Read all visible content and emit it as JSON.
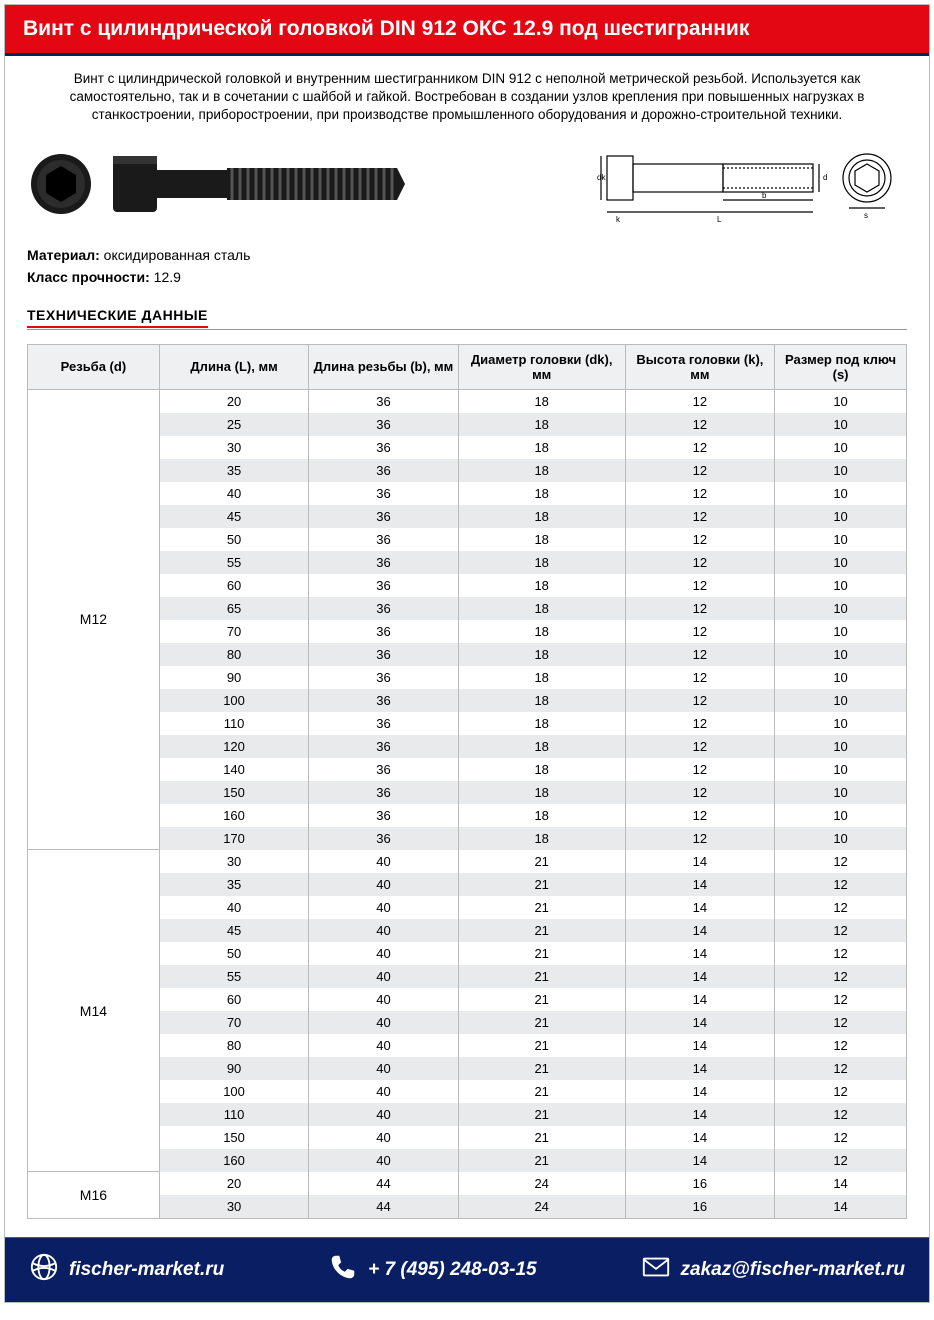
{
  "title": "Винт с цилиндрической головкой DIN 912 ОКС 12.9 под шестигранник",
  "description": "Винт с цилиндрической головкой и внутренним шестигранником DIN 912 с неполной метрической резьбой. Используется как самостоятельно, так и в сочетании с шайбой и гайкой. Востребован в создании узлов крепления при повышенных нагрузках в станкостроении, приборостроении, при производстве промышленного оборудования и дорожно-строительной техники.",
  "material_label": "Материал:",
  "material_value": "оксидированная сталь",
  "strength_label": "Класс прочности:",
  "strength_value": "12.9",
  "tech_heading": "ТЕХНИЧЕСКИЕ ДАННЫЕ",
  "table": {
    "columns": [
      "Резьба (d)",
      "Длина (L), мм",
      "Длина резьбы (b), мм",
      "Диаметр головки (dk), мм",
      "Высота головки (k), мм",
      "Размер под ключ (s)"
    ],
    "col_widths": [
      "15%",
      "17%",
      "17%",
      "19%",
      "17%",
      "15%"
    ],
    "groups": [
      {
        "label": "M12",
        "rows": [
          [
            "20",
            "36",
            "18",
            "12",
            "10"
          ],
          [
            "25",
            "36",
            "18",
            "12",
            "10"
          ],
          [
            "30",
            "36",
            "18",
            "12",
            "10"
          ],
          [
            "35",
            "36",
            "18",
            "12",
            "10"
          ],
          [
            "40",
            "36",
            "18",
            "12",
            "10"
          ],
          [
            "45",
            "36",
            "18",
            "12",
            "10"
          ],
          [
            "50",
            "36",
            "18",
            "12",
            "10"
          ],
          [
            "55",
            "36",
            "18",
            "12",
            "10"
          ],
          [
            "60",
            "36",
            "18",
            "12",
            "10"
          ],
          [
            "65",
            "36",
            "18",
            "12",
            "10"
          ],
          [
            "70",
            "36",
            "18",
            "12",
            "10"
          ],
          [
            "80",
            "36",
            "18",
            "12",
            "10"
          ],
          [
            "90",
            "36",
            "18",
            "12",
            "10"
          ],
          [
            "100",
            "36",
            "18",
            "12",
            "10"
          ],
          [
            "110",
            "36",
            "18",
            "12",
            "10"
          ],
          [
            "120",
            "36",
            "18",
            "12",
            "10"
          ],
          [
            "140",
            "36",
            "18",
            "12",
            "10"
          ],
          [
            "150",
            "36",
            "18",
            "12",
            "10"
          ],
          [
            "160",
            "36",
            "18",
            "12",
            "10"
          ],
          [
            "170",
            "36",
            "18",
            "12",
            "10"
          ]
        ]
      },
      {
        "label": "M14",
        "rows": [
          [
            "30",
            "40",
            "21",
            "14",
            "12"
          ],
          [
            "35",
            "40",
            "21",
            "14",
            "12"
          ],
          [
            "40",
            "40",
            "21",
            "14",
            "12"
          ],
          [
            "45",
            "40",
            "21",
            "14",
            "12"
          ],
          [
            "50",
            "40",
            "21",
            "14",
            "12"
          ],
          [
            "55",
            "40",
            "21",
            "14",
            "12"
          ],
          [
            "60",
            "40",
            "21",
            "14",
            "12"
          ],
          [
            "70",
            "40",
            "21",
            "14",
            "12"
          ],
          [
            "80",
            "40",
            "21",
            "14",
            "12"
          ],
          [
            "90",
            "40",
            "21",
            "14",
            "12"
          ],
          [
            "100",
            "40",
            "21",
            "14",
            "12"
          ],
          [
            "110",
            "40",
            "21",
            "14",
            "12"
          ],
          [
            "150",
            "40",
            "21",
            "14",
            "12"
          ],
          [
            "160",
            "40",
            "21",
            "14",
            "12"
          ]
        ]
      },
      {
        "label": "M16",
        "rows": [
          [
            "20",
            "44",
            "24",
            "16",
            "14"
          ],
          [
            "30",
            "44",
            "24",
            "16",
            "14"
          ]
        ]
      }
    ]
  },
  "diagram_labels": {
    "dk": "dk",
    "d": "d",
    "b": "b",
    "k": "k",
    "L": "L",
    "s": "s"
  },
  "footer": {
    "site": "fischer-market.ru",
    "phone": "+ 7 (495) 248-03-15",
    "email": "zakaz@fischer-market.ru"
  },
  "colors": {
    "brand_red": "#e30613",
    "brand_blue": "#0a1e64",
    "header_bg": "#eef0f2",
    "row_alt": "#e8eaec",
    "border": "#bbbbbb"
  }
}
